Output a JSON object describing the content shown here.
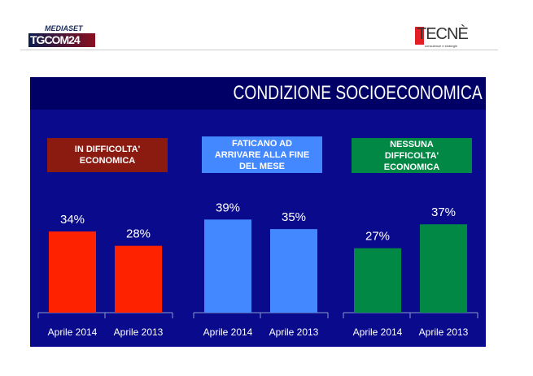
{
  "header": {
    "left_logo_top": "MEDIASET",
    "left_logo": "TGCOM24",
    "right_logo": "TECNÈ",
    "right_logo_sub": "consulenze e strategie"
  },
  "chart_data": {
    "type": "bar",
    "title": "CONDIZIONE SOCIOECONOMICA",
    "categories": [
      "Aprile 2014",
      "Aprile 2013"
    ],
    "groups": [
      {
        "name": "IN DIFFICOLTA' ECONOMICA",
        "color": "#ff2200",
        "values": [
          34,
          28
        ],
        "labels": [
          "34%",
          "28%"
        ]
      },
      {
        "name": "FATICANO AD ARRIVARE ALLA FINE DEL MESE",
        "color": "#4488ff",
        "values": [
          39,
          35
        ],
        "labels": [
          "39%",
          "35%"
        ]
      },
      {
        "name": "NESSUNA DIFFICOLTA' ECONOMICA",
        "color": "#008844",
        "values": [
          27,
          37
        ],
        "labels": [
          "27%",
          "37%"
        ]
      }
    ],
    "ylim": [
      0,
      45
    ],
    "colors": {
      "label_red": "#8b1a10",
      "label_blue": "#4488ff",
      "label_green": "#008844"
    }
  }
}
